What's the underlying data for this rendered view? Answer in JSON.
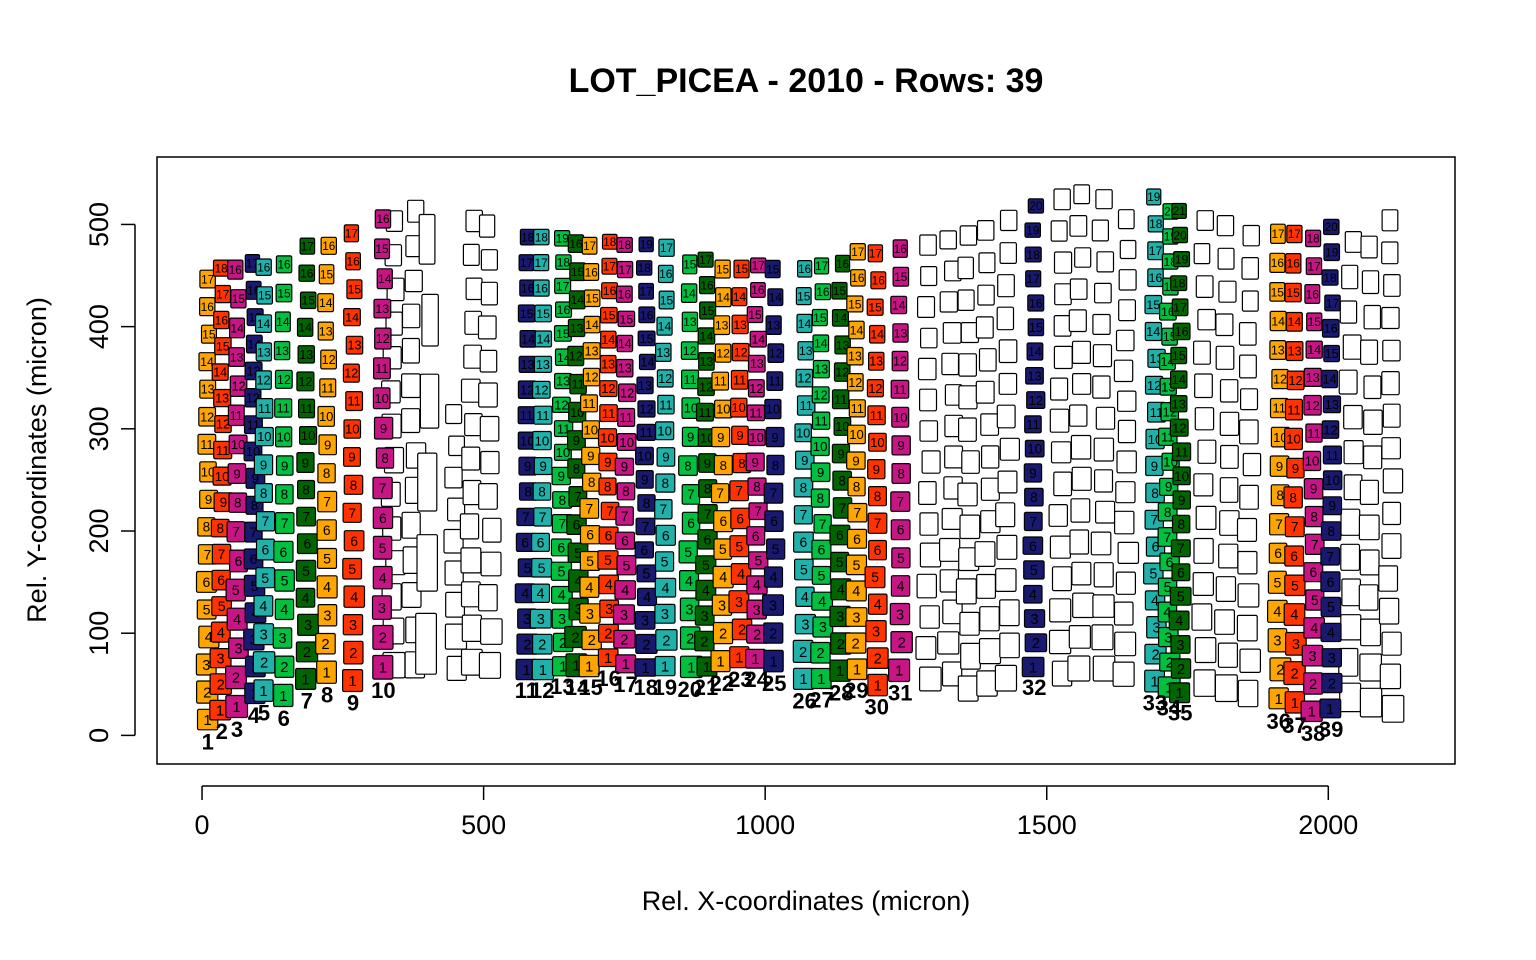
{
  "chart_data": {
    "type": "scatter",
    "title": "LOT_PICEA - 2010 - Rows: 39",
    "xlabel": "Rel. X-coordinates (micron)",
    "ylabel": "Rel. Y-coordinates (micron)",
    "xlim": [
      -80,
      2225
    ],
    "ylim": [
      -28,
      566
    ],
    "xticks": [
      0,
      500,
      1000,
      1500,
      2000
    ],
    "yticks": [
      0,
      100,
      200,
      300,
      400,
      500
    ],
    "grid": false,
    "legend": "none",
    "palette": [
      "#FFA500",
      "#FF3300",
      "#C71585",
      "#191970",
      "#20B2AA",
      "#00C040",
      "#006400"
    ],
    "unassigned_color": "#FFFFFF",
    "cell_height_range": [
      16,
      34
    ],
    "rows": [
      {
        "row": 1,
        "x": 10,
        "color": "#FFA500",
        "cells": 17,
        "y_start": 2,
        "y_end": 460
      },
      {
        "row": 2,
        "x": 35,
        "color": "#FF3300",
        "cells": 18,
        "y_start": 12,
        "y_end": 470
      },
      {
        "row": 3,
        "x": 62,
        "color": "#C71585",
        "cells": 16,
        "y_start": 14,
        "y_end": 470
      },
      {
        "row": 4,
        "x": 92,
        "color": "#191970",
        "cells": 17,
        "y_start": 28,
        "y_end": 475
      },
      {
        "row": 5,
        "x": 110,
        "color": "#20B2AA",
        "cells": 16,
        "y_start": 30,
        "y_end": 472
      },
      {
        "row": 6,
        "x": 145,
        "color": "#00C040",
        "cells": 16,
        "y_start": 25,
        "y_end": 475
      },
      {
        "row": 7,
        "x": 186,
        "color": "#006400",
        "cells": 17,
        "y_start": 42,
        "y_end": 492
      },
      {
        "row": 8,
        "x": 222,
        "color": "#FFA500",
        "cells": 16,
        "y_start": 48,
        "y_end": 493
      },
      {
        "row": 9,
        "x": 268,
        "color": "#FF3300",
        "cells": 17,
        "y_start": 40,
        "y_end": 505
      },
      {
        "row": 10,
        "x": 322,
        "color": "#C71585",
        "cells": 16,
        "y_start": 52,
        "y_end": 520
      },
      {
        "row": 11,
        "x": 576,
        "color": "#191970",
        "cells": 18,
        "y_start": 52,
        "y_end": 500
      },
      {
        "row": 12,
        "x": 604,
        "color": "#20B2AA",
        "cells": 18,
        "y_start": 52,
        "y_end": 500
      },
      {
        "row": 13,
        "x": 640,
        "color": "#00C040",
        "cells": 19,
        "y_start": 56,
        "y_end": 498
      },
      {
        "row": 14,
        "x": 666,
        "color": "#006400",
        "cells": 16,
        "y_start": 55,
        "y_end": 495
      },
      {
        "row": 15,
        "x": 690,
        "color": "#FFA500",
        "cells": 17,
        "y_start": 55,
        "y_end": 492
      },
      {
        "row": 16,
        "x": 722,
        "color": "#FF3300",
        "cells": 18,
        "y_start": 64,
        "y_end": 495
      },
      {
        "row": 17,
        "x": 752,
        "color": "#C71585",
        "cells": 18,
        "y_start": 58,
        "y_end": 492
      },
      {
        "row": 18,
        "x": 788,
        "color": "#191970",
        "cells": 19,
        "y_start": 55,
        "y_end": 492
      },
      {
        "row": 19,
        "x": 822,
        "color": "#20B2AA",
        "cells": 17,
        "y_start": 55,
        "y_end": 490
      },
      {
        "row": 20,
        "x": 866,
        "color": "#00C040",
        "cells": 15,
        "y_start": 53,
        "y_end": 475
      },
      {
        "row": 21,
        "x": 895,
        "color": "#006400",
        "cells": 17,
        "y_start": 55,
        "y_end": 478
      },
      {
        "row": 22,
        "x": 923,
        "color": "#FFA500",
        "cells": 15,
        "y_start": 59,
        "y_end": 470
      },
      {
        "row": 23,
        "x": 956,
        "color": "#FF3300",
        "cells": 15,
        "y_start": 63,
        "y_end": 470
      },
      {
        "row": 24,
        "x": 985,
        "color": "#C71585",
        "cells": 17,
        "y_start": 63,
        "y_end": 472
      },
      {
        "row": 25,
        "x": 1016,
        "color": "#191970",
        "cells": 15,
        "y_start": 59,
        "y_end": 470
      },
      {
        "row": 26,
        "x": 1070,
        "color": "#20B2AA",
        "cells": 16,
        "y_start": 42,
        "y_end": 470
      },
      {
        "row": 27,
        "x": 1100,
        "color": "#00C040",
        "cells": 17,
        "y_start": 43,
        "y_end": 472
      },
      {
        "row": 28,
        "x": 1135,
        "color": "#006400",
        "cells": 16,
        "y_start": 50,
        "y_end": 475
      },
      {
        "row": 29,
        "x": 1162,
        "color": "#FFA500",
        "cells": 17,
        "y_start": 52,
        "y_end": 486
      },
      {
        "row": 30,
        "x": 1198,
        "color": "#FF3300",
        "cells": 17,
        "y_start": 36,
        "y_end": 485
      },
      {
        "row": 31,
        "x": 1240,
        "color": "#C71585",
        "cells": 16,
        "y_start": 50,
        "y_end": 490
      },
      {
        "row": 32,
        "x": 1478,
        "color": "#191970",
        "cells": 20,
        "y_start": 55,
        "y_end": 530
      },
      {
        "row": 33,
        "x": 1692,
        "color": "#20B2AA",
        "cells": 19,
        "y_start": 40,
        "y_end": 540
      },
      {
        "row": 34,
        "x": 1717,
        "color": "#00C040",
        "cells": 20,
        "y_start": 35,
        "y_end": 525
      },
      {
        "row": 35,
        "x": 1737,
        "color": "#006400",
        "cells": 21,
        "y_start": 30,
        "y_end": 525
      },
      {
        "row": 36,
        "x": 1912,
        "color": "#FFA500",
        "cells": 17,
        "y_start": 22,
        "y_end": 505
      },
      {
        "row": 37,
        "x": 1940,
        "color": "#FF3300",
        "cells": 17,
        "y_start": 18,
        "y_end": 505
      },
      {
        "row": 38,
        "x": 1973,
        "color": "#C71585",
        "cells": 18,
        "y_start": 10,
        "y_end": 500
      },
      {
        "row": 39,
        "x": 2005,
        "color": "#191970",
        "cells": 20,
        "y_start": 14,
        "y_end": 510
      }
    ],
    "unassigned_columns": [
      {
        "x": 340,
        "y_start": 52,
        "y_end": 520,
        "cells": 14
      },
      {
        "x": 375,
        "y_start": 52,
        "y_end": 530,
        "cells": 14
      },
      {
        "x": 400,
        "y_start": 50,
        "y_end": 525,
        "cells": 6
      },
      {
        "x": 450,
        "y_start": 50,
        "y_end": 330,
        "cells": 9
      },
      {
        "x": 480,
        "y_start": 55,
        "y_end": 520,
        "cells": 14
      },
      {
        "x": 510,
        "y_start": 52,
        "y_end": 515,
        "cells": 14
      },
      {
        "x": 1290,
        "y_start": 40,
        "y_end": 495,
        "cells": 15
      },
      {
        "x": 1330,
        "y_start": 45,
        "y_end": 500,
        "cells": 15
      },
      {
        "x": 1360,
        "y_start": 30,
        "y_end": 505,
        "cells": 15
      },
      {
        "x": 1395,
        "y_start": 35,
        "y_end": 510,
        "cells": 15
      },
      {
        "x": 1430,
        "y_start": 40,
        "y_end": 520,
        "cells": 15
      },
      {
        "x": 1525,
        "y_start": 45,
        "y_end": 540,
        "cells": 16
      },
      {
        "x": 1560,
        "y_start": 50,
        "y_end": 545,
        "cells": 16
      },
      {
        "x": 1600,
        "y_start": 50,
        "y_end": 540,
        "cells": 16
      },
      {
        "x": 1640,
        "y_start": 45,
        "y_end": 520,
        "cells": 16
      },
      {
        "x": 1780,
        "y_start": 35,
        "y_end": 520,
        "cells": 15
      },
      {
        "x": 1820,
        "y_start": 30,
        "y_end": 515,
        "cells": 15
      },
      {
        "x": 1860,
        "y_start": 25,
        "y_end": 505,
        "cells": 15
      },
      {
        "x": 2040,
        "y_start": 20,
        "y_end": 500,
        "cells": 14
      },
      {
        "x": 2075,
        "y_start": 15,
        "y_end": 495,
        "cells": 14
      },
      {
        "x": 2110,
        "y_start": 10,
        "y_end": 520,
        "cells": 16
      }
    ]
  }
}
